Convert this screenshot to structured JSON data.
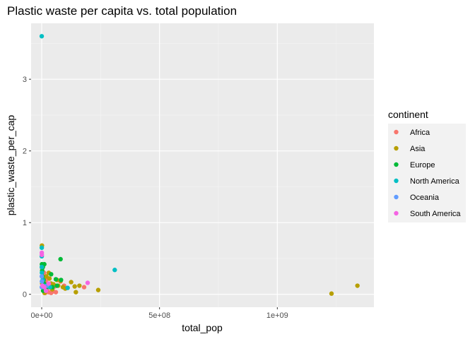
{
  "chart_data": {
    "type": "scatter",
    "title": "Plastic waste per capita vs. total population",
    "xlabel": "total_pop",
    "ylabel": "plastic_waste_per_cap",
    "xlim": [
      -45000000,
      1410000000
    ],
    "ylim": [
      -0.18,
      3.78
    ],
    "x_ticks": [
      0,
      500000000,
      1000000000
    ],
    "x_tick_labels": [
      "0e+00",
      "5e+08",
      "1e+09"
    ],
    "y_ticks": [
      0,
      1,
      2,
      3
    ],
    "y_tick_labels": [
      "0",
      "1",
      "2",
      "3"
    ],
    "grid": true,
    "legend": {
      "title": "continent",
      "position": "right",
      "entries": [
        {
          "name": "Africa",
          "color": "#F8766D"
        },
        {
          "name": "Asia",
          "color": "#B79F00"
        },
        {
          "name": "Europe",
          "color": "#00BA38"
        },
        {
          "name": "North America",
          "color": "#00BFC4"
        },
        {
          "name": "Oceania",
          "color": "#619CFF"
        },
        {
          "name": "South America",
          "color": "#F564E3"
        }
      ]
    },
    "series": [
      {
        "name": "Africa",
        "color": "#F8766D",
        "points": [
          [
            2000000,
            0.36
          ],
          [
            5000000,
            0.25
          ],
          [
            8000000,
            0.12
          ],
          [
            12000000,
            0.05
          ],
          [
            18000000,
            0.2
          ],
          [
            22000000,
            0.08
          ],
          [
            25000000,
            0.15
          ],
          [
            30000000,
            0.03
          ],
          [
            35000000,
            0.1
          ],
          [
            40000000,
            0.02
          ],
          [
            45000000,
            0.06
          ],
          [
            55000000,
            0.11
          ],
          [
            60000000,
            0.03
          ],
          [
            80000000,
            0.18
          ],
          [
            95000000,
            0.12
          ],
          [
            180000000,
            0.1
          ],
          [
            10000000,
            0.3
          ],
          [
            15000000,
            0.02
          ],
          [
            28000000,
            0.22
          ],
          [
            48000000,
            0.04
          ]
        ]
      },
      {
        "name": "Asia",
        "color": "#B79F00",
        "points": [
          [
            1000000,
            0.68
          ],
          [
            3000000,
            0.4
          ],
          [
            7000000,
            0.18
          ],
          [
            10000000,
            0.1
          ],
          [
            20000000,
            0.25
          ],
          [
            25000000,
            0.12
          ],
          [
            30000000,
            0.3
          ],
          [
            33000000,
            0.22
          ],
          [
            45000000,
            0.07
          ],
          [
            50000000,
            0.14
          ],
          [
            65000000,
            0.2
          ],
          [
            70000000,
            0.12
          ],
          [
            80000000,
            0.19
          ],
          [
            90000000,
            0.1
          ],
          [
            100000000,
            0.08
          ],
          [
            125000000,
            0.17
          ],
          [
            140000000,
            0.11
          ],
          [
            145000000,
            0.03
          ],
          [
            160000000,
            0.12
          ],
          [
            240000000,
            0.06
          ],
          [
            1230000000,
            0.01
          ],
          [
            1340000000,
            0.12
          ],
          [
            2000000,
            0.15
          ],
          [
            12000000,
            0.02
          ],
          [
            40000000,
            0.15
          ]
        ]
      },
      {
        "name": "Europe",
        "color": "#00BA38",
        "points": [
          [
            1000000,
            0.42
          ],
          [
            3000000,
            0.25
          ],
          [
            5000000,
            0.38
          ],
          [
            8000000,
            0.2
          ],
          [
            10000000,
            0.15
          ],
          [
            11000000,
            0.42
          ],
          [
            17000000,
            0.08
          ],
          [
            20000000,
            0.12
          ],
          [
            40000000,
            0.28
          ],
          [
            46000000,
            0.1
          ],
          [
            60000000,
            0.21
          ],
          [
            65000000,
            0.12
          ],
          [
            80000000,
            0.49
          ],
          [
            82000000,
            0.2
          ],
          [
            6000000,
            0.05
          ],
          [
            2000000,
            0.33
          ]
        ]
      },
      {
        "name": "North America",
        "color": "#00BFC4",
        "points": [
          [
            100000,
            3.6
          ],
          [
            200000,
            0.53
          ],
          [
            300000,
            0.65
          ],
          [
            500000,
            0.38
          ],
          [
            1000000,
            0.3
          ],
          [
            4000000,
            0.2
          ],
          [
            10000000,
            0.12
          ],
          [
            110000000,
            0.09
          ],
          [
            310000000,
            0.34
          ],
          [
            35000000,
            0.1
          ]
        ]
      },
      {
        "name": "Oceania",
        "color": "#619CFF",
        "points": [
          [
            200000,
            0.25
          ],
          [
            400000,
            0.1
          ],
          [
            800000,
            0.18
          ],
          [
            4000000,
            0.12
          ],
          [
            22000000,
            0.12
          ]
        ]
      },
      {
        "name": "South America",
        "color": "#F564E3",
        "points": [
          [
            400000,
            0.58
          ],
          [
            600000,
            0.55
          ],
          [
            3000000,
            0.12
          ],
          [
            11000000,
            0.1
          ],
          [
            18000000,
            0.05
          ],
          [
            30000000,
            0.15
          ],
          [
            195000000,
            0.16
          ]
        ]
      }
    ]
  }
}
